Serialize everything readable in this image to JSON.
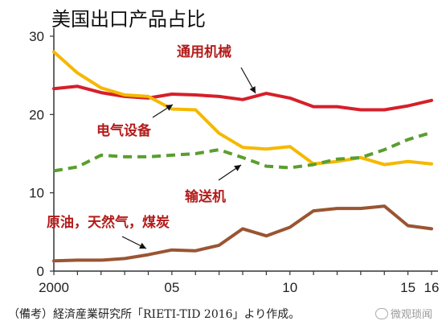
{
  "chart_data": {
    "type": "line",
    "title": "美国出口产品占比",
    "x": [
      2000,
      2001,
      2002,
      2003,
      2004,
      2005,
      2006,
      2007,
      2008,
      2009,
      2010,
      2011,
      2012,
      2013,
      2014,
      2015,
      2016
    ],
    "xtick_labels": [
      {
        "x": 2000,
        "label": "2000"
      },
      {
        "x": 2005,
        "label": "05"
      },
      {
        "x": 2010,
        "label": "10"
      },
      {
        "x": 2015,
        "label": "15"
      },
      {
        "x": 2016,
        "label": "16"
      }
    ],
    "yticks": [
      0,
      10,
      20,
      30
    ],
    "ylim": [
      0,
      30
    ],
    "xlim": [
      2000,
      2016
    ],
    "grid": false,
    "series": [
      {
        "name": "通用机械",
        "color": "#d61f2a",
        "style": "solid",
        "values": [
          23.3,
          23.6,
          22.8,
          22.3,
          22.1,
          22.6,
          22.5,
          22.3,
          21.9,
          22.7,
          22.1,
          21.0,
          21.0,
          20.6,
          20.6,
          21.1,
          21.8
        ]
      },
      {
        "name": "电气设备",
        "color": "#f5b800",
        "style": "solid",
        "values": [
          28.0,
          25.3,
          23.4,
          22.5,
          22.3,
          20.7,
          20.6,
          17.6,
          15.8,
          15.6,
          15.9,
          13.7,
          14.0,
          14.5,
          13.6,
          14.0,
          13.7
        ]
      },
      {
        "name": "输送机",
        "color": "#5a9e2f",
        "style": "dashed",
        "values": [
          12.8,
          13.3,
          14.8,
          14.6,
          14.6,
          14.8,
          15.0,
          15.5,
          14.5,
          13.4,
          13.2,
          13.6,
          14.3,
          14.5,
          15.5,
          16.8,
          17.7
        ]
      },
      {
        "name": "原油，天然气，煤炭",
        "color": "#9a5532",
        "style": "solid",
        "values": [
          1.3,
          1.4,
          1.4,
          1.6,
          2.1,
          2.7,
          2.6,
          3.3,
          5.4,
          4.5,
          5.6,
          7.7,
          8.0,
          8.0,
          8.3,
          5.8,
          5.4
        ]
      }
    ],
    "annotations": [
      {
        "text": "通用机械",
        "series": 0
      },
      {
        "text": "电气设备",
        "series": 1
      },
      {
        "text": "输送机",
        "series": 2
      },
      {
        "text": "原油，天然气，煤炭",
        "series": 3
      }
    ]
  },
  "source_note": "（備考）経済産業研究所「RIETI-TID 2016」より作成。",
  "watermark": "微观琐闻"
}
